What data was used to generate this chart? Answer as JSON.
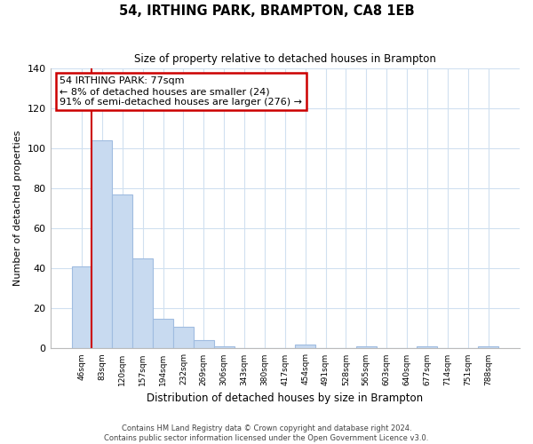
{
  "title": "54, IRTHING PARK, BRAMPTON, CA8 1EB",
  "subtitle": "Size of property relative to detached houses in Brampton",
  "xlabel": "Distribution of detached houses by size in Brampton",
  "ylabel": "Number of detached properties",
  "bar_labels": [
    "46sqm",
    "83sqm",
    "120sqm",
    "157sqm",
    "194sqm",
    "232sqm",
    "269sqm",
    "306sqm",
    "343sqm",
    "380sqm",
    "417sqm",
    "454sqm",
    "491sqm",
    "528sqm",
    "565sqm",
    "603sqm",
    "640sqm",
    "677sqm",
    "714sqm",
    "751sqm",
    "788sqm"
  ],
  "bar_values": [
    41,
    104,
    77,
    45,
    15,
    11,
    4,
    1,
    0,
    0,
    0,
    2,
    0,
    0,
    1,
    0,
    0,
    1,
    0,
    0,
    1
  ],
  "bar_color": "#c8daf0",
  "bar_edge_color": "#a0bce0",
  "highlight_color": "#cc0000",
  "highlight_bar_index": 1,
  "ylim": [
    0,
    140
  ],
  "yticks": [
    0,
    20,
    40,
    60,
    80,
    100,
    120,
    140
  ],
  "annotation_title": "54 IRTHING PARK: 77sqm",
  "annotation_line1": "← 8% of detached houses are smaller (24)",
  "annotation_line2": "91% of semi-detached houses are larger (276) →",
  "annotation_box_color": "#ffffff",
  "annotation_box_edge": "#cc0000",
  "footer_line1": "Contains HM Land Registry data © Crown copyright and database right 2024.",
  "footer_line2": "Contains public sector information licensed under the Open Government Licence v3.0.",
  "background_color": "#ffffff",
  "grid_color": "#d0e0f0"
}
